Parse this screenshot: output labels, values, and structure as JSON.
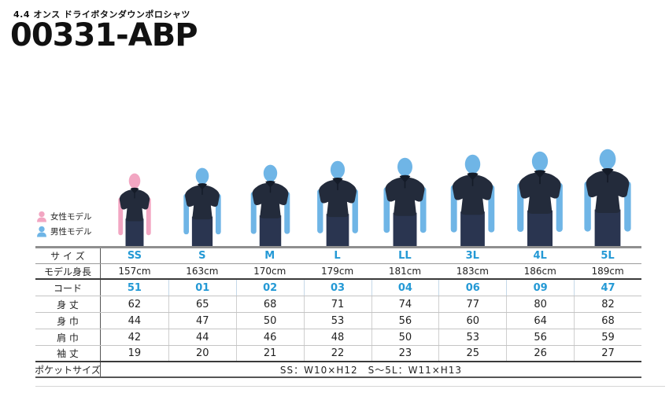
{
  "header": {
    "subtitle": "4.4 オンス ドライボタンダウンポロシャツ",
    "product_code": "00331-ABP"
  },
  "legend": {
    "female_label": "女性モデル",
    "male_label": "男性モデル"
  },
  "colors": {
    "accent_blue": "#2499d5",
    "female_skin": "#f2a6c2",
    "male_skin": "#6fb5e6",
    "shirt": "#232b3b",
    "shirt_dark": "#141b28",
    "pants": "#2a3550"
  },
  "models": [
    {
      "size": "SS",
      "gender": "female"
    },
    {
      "size": "S",
      "gender": "male"
    },
    {
      "size": "M",
      "gender": "male"
    },
    {
      "size": "L",
      "gender": "male"
    },
    {
      "size": "LL",
      "gender": "male"
    },
    {
      "size": "3L",
      "gender": "male"
    },
    {
      "size": "4L",
      "gender": "male"
    },
    {
      "size": "5L",
      "gender": "male"
    }
  ],
  "size_chart": {
    "row_labels": {
      "size": "サ イ ズ",
      "model_height": "モデル身長",
      "code": "コード",
      "body_length": "身 丈",
      "body_width": "身 巾",
      "shoulder_width": "肩 巾",
      "sleeve_length": "袖 丈",
      "pocket_size": "ポケットサイズ"
    },
    "sizes": [
      "SS",
      "S",
      "M",
      "L",
      "LL",
      "3L",
      "4L",
      "5L"
    ],
    "model_heights": [
      "157cm",
      "163cm",
      "170cm",
      "179cm",
      "181cm",
      "183cm",
      "186cm",
      "189cm"
    ],
    "codes": [
      "51",
      "01",
      "02",
      "03",
      "04",
      "06",
      "09",
      "47"
    ],
    "body_length": [
      "62",
      "65",
      "68",
      "71",
      "74",
      "77",
      "80",
      "82"
    ],
    "body_width": [
      "44",
      "47",
      "50",
      "53",
      "56",
      "60",
      "64",
      "68"
    ],
    "shoulder_width": [
      "42",
      "44",
      "46",
      "48",
      "50",
      "53",
      "56",
      "59"
    ],
    "sleeve_length": [
      "19",
      "20",
      "21",
      "22",
      "23",
      "25",
      "26",
      "27"
    ],
    "pocket_size_value": "SS：W10×H12　S～5L：W11×H13"
  }
}
